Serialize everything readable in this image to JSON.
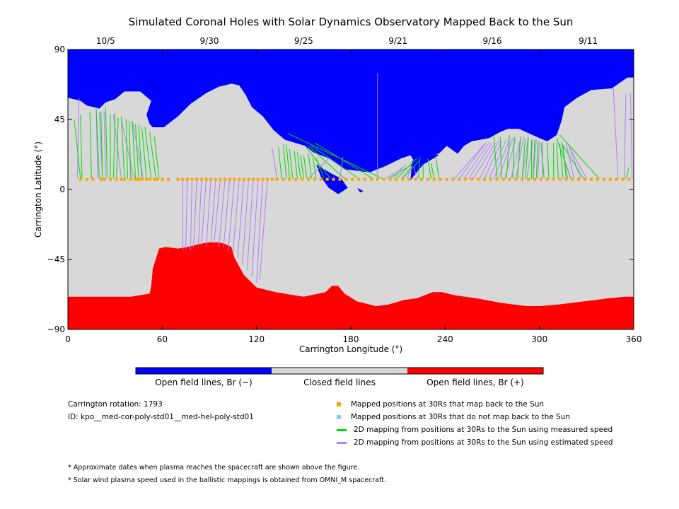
{
  "title": "Simulated Coronal Holes with Solar Dynamics Observatory Mapped Back to the Sun",
  "colors": {
    "open_negative": "#0000ff",
    "closed": "#d8d8d8",
    "open_positive": "#ff0000",
    "mapped_back": "#ffa500",
    "not_mapped_back": "#87cefa",
    "measured_speed": "#00dd00",
    "estimated_speed": "#b07cff"
  },
  "colorbar": {
    "labels": [
      "Open field lines, Br (−)",
      "Closed field lines",
      "Open field lines, Br (+)"
    ]
  },
  "info": {
    "rotation": "Carrington rotation: 1793",
    "id": "ID: kpo__med-cor-poly-std01__med-hel-poly-std01"
  },
  "legend": [
    {
      "kind": "square",
      "color_key": "mapped_back",
      "label": "Mapped positions at 30Rs that map back to the Sun"
    },
    {
      "kind": "square",
      "color_key": "not_mapped_back",
      "label": "Mapped positions at 30Rs that do not map back to the Sun"
    },
    {
      "kind": "line",
      "color_key": "measured_speed",
      "label": "2D mapping from positions at 30Rs to the Sun using measured speed"
    },
    {
      "kind": "line",
      "color_key": "estimated_speed",
      "label": "2D mapping from positions at 30Rs to the Sun using estimated speed"
    }
  ],
  "notes": [
    "* Approximate dates when plasma reaches the spacecraft are shown above the figure.",
    "* Solar wind plasma speed used in the ballistic mappings is obtained from OMNI_M spacecraft."
  ],
  "chart_data": {
    "type": "heatmap",
    "title": "Simulated Coronal Holes with Solar Dynamics Observatory Mapped Back to the Sun",
    "xlabel": "Carrington Longitude (°)",
    "ylabel": "Carrington Latitude (°)",
    "xlim": [
      0,
      360
    ],
    "ylim": [
      -90,
      90
    ],
    "x_ticks": [
      0,
      60,
      120,
      180,
      240,
      300,
      360
    ],
    "y_ticks": [
      {
        "value": -90,
        "label": "−90"
      },
      {
        "value": -45,
        "label": "−45"
      },
      {
        "value": 0,
        "label": "0"
      },
      {
        "value": 45,
        "label": "45"
      },
      {
        "value": 90,
        "label": "90"
      }
    ],
    "top_date_ticks": [
      {
        "lon": 24,
        "label": "10/5"
      },
      {
        "lon": 90,
        "label": "9/30"
      },
      {
        "lon": 150,
        "label": "9/25"
      },
      {
        "lon": 210,
        "label": "9/21"
      },
      {
        "lon": 270,
        "label": "9/16"
      },
      {
        "lon": 331,
        "label": "9/11"
      }
    ],
    "regions": [
      {
        "name": "Open field lines, Br (−)",
        "color_key": "open_negative",
        "polygons": [
          [
            [
              0,
              90
            ],
            [
              360,
              90
            ],
            [
              360,
              72
            ],
            [
              356,
              72
            ],
            [
              346,
              65
            ],
            [
              333,
              64
            ],
            [
              324,
              59
            ],
            [
              316,
              53
            ],
            [
              314,
              44
            ],
            [
              311,
              35
            ],
            [
              305,
              31
            ],
            [
              300,
              33
            ],
            [
              287,
              39
            ],
            [
              280,
              39
            ],
            [
              275,
              37
            ],
            [
              268,
              33
            ],
            [
              257,
              31
            ],
            [
              252,
              28
            ],
            [
              248,
              23
            ],
            [
              241,
              28
            ],
            [
              236,
              23
            ],
            [
              230,
              22
            ],
            [
              222,
              21
            ],
            [
              221,
              17
            ],
            [
              218,
              22
            ],
            [
              212,
              20
            ],
            [
              202,
              15
            ],
            [
              192,
              11
            ],
            [
              184,
              12
            ],
            [
              176,
              13
            ],
            [
              166,
              20
            ],
            [
              156,
              24
            ],
            [
              151,
              28
            ],
            [
              138,
              32
            ],
            [
              131,
              38
            ],
            [
              124,
              47
            ],
            [
              117,
              53
            ],
            [
              113,
              61
            ],
            [
              109,
              67
            ],
            [
              104,
              68
            ],
            [
              96,
              66
            ],
            [
              88,
              62
            ],
            [
              78,
              55
            ],
            [
              70,
              47
            ],
            [
              61,
              40
            ],
            [
              54,
              40
            ],
            [
              52,
              42
            ],
            [
              50,
              48
            ],
            [
              53,
              57
            ],
            [
              46,
              63
            ],
            [
              36,
              63
            ],
            [
              30,
              58
            ],
            [
              24,
              56
            ],
            [
              20,
              52
            ],
            [
              12,
              54
            ],
            [
              8,
              57
            ],
            [
              0,
              59
            ]
          ],
          [
            [
              158,
              16
            ],
            [
              163,
              13
            ],
            [
              168,
              10
            ],
            [
              174,
              7
            ],
            [
              178,
              1
            ],
            [
              172,
              -3
            ],
            [
              166,
              1
            ],
            [
              161,
              8
            ]
          ],
          [
            [
              218,
              6
            ],
            [
              219,
              18
            ],
            [
              222,
              21
            ],
            [
              232,
              24
            ],
            [
              236,
              22
            ],
            [
              226,
              16
            ],
            [
              222,
              11
            ]
          ],
          [
            [
              184,
              1
            ],
            [
              188,
              -1
            ],
            [
              186,
              -2
            ]
          ]
        ]
      },
      {
        "name": "Open field lines, Br (+)",
        "color_key": "open_positive",
        "polygons": [
          [
            [
              0,
              -69
            ],
            [
              40,
              -69
            ],
            [
              52,
              -67
            ],
            [
              53,
              -62
            ],
            [
              54,
              -51
            ],
            [
              58,
              -38
            ],
            [
              62,
              -37
            ],
            [
              70,
              -38
            ],
            [
              76,
              -37
            ],
            [
              84,
              -35
            ],
            [
              90,
              -34
            ],
            [
              96,
              -34
            ],
            [
              100,
              -35
            ],
            [
              104,
              -37
            ],
            [
              106,
              -44
            ],
            [
              112,
              -55
            ],
            [
              120,
              -63
            ],
            [
              132,
              -66
            ],
            [
              150,
              -69
            ],
            [
              164,
              -66
            ],
            [
              168,
              -62
            ],
            [
              172,
              -62
            ],
            [
              176,
              -67
            ],
            [
              184,
              -72
            ],
            [
              196,
              -75
            ],
            [
              204,
              -74
            ],
            [
              214,
              -71
            ],
            [
              222,
              -70
            ],
            [
              232,
              -66
            ],
            [
              238,
              -66
            ],
            [
              246,
              -68
            ],
            [
              260,
              -70
            ],
            [
              276,
              -73
            ],
            [
              292,
              -75
            ],
            [
              300,
              -75
            ],
            [
              312,
              -74
            ],
            [
              328,
              -72
            ],
            [
              344,
              -70
            ],
            [
              354,
              -69
            ],
            [
              360,
              -69
            ],
            [
              360,
              -90
            ],
            [
              0,
              -90
            ]
          ]
        ]
      }
    ],
    "mapped_positions_30Rs": {
      "latitude": 6.5,
      "lon_mapped_back": [
        8,
        12,
        16,
        21,
        23,
        27,
        31,
        34,
        36,
        40,
        43,
        45,
        47,
        50,
        52,
        55,
        57,
        60,
        64,
        70,
        73,
        76,
        79,
        82,
        85,
        88,
        91,
        94,
        97,
        100,
        103,
        106,
        109,
        112,
        115,
        118,
        121,
        124,
        127,
        130,
        133,
        137,
        141,
        145,
        149,
        153,
        157,
        161,
        165,
        169,
        173,
        177,
        181,
        185,
        189,
        193,
        197,
        201,
        205,
        209,
        213,
        217,
        221,
        225,
        229,
        233,
        237,
        241,
        245,
        249,
        253,
        257,
        261,
        265,
        269,
        273,
        277,
        281,
        285,
        289,
        293,
        297,
        301,
        305,
        309,
        313,
        317,
        321,
        325,
        329,
        333,
        337,
        341,
        345,
        349,
        353,
        357
      ],
      "lon_not_mapped_back": []
    },
    "mappings_measured_speed": [
      [
        8,
        7,
        4,
        45
      ],
      [
        9,
        7,
        8,
        48
      ],
      [
        15,
        7,
        14,
        50
      ],
      [
        20,
        7,
        18,
        52
      ],
      [
        22,
        7,
        21,
        50
      ],
      [
        25,
        7,
        24,
        53
      ],
      [
        27,
        7,
        27,
        48
      ],
      [
        29,
        7,
        30,
        49
      ],
      [
        31,
        7,
        32,
        46
      ],
      [
        36,
        7,
        34,
        47
      ],
      [
        38,
        7,
        37,
        45
      ],
      [
        40,
        7,
        39,
        44
      ],
      [
        43,
        7,
        41,
        44
      ],
      [
        45,
        7,
        43,
        42
      ],
      [
        47,
        7,
        45,
        42
      ],
      [
        50,
        7,
        47,
        40
      ],
      [
        53,
        7,
        49,
        40
      ],
      [
        56,
        7,
        52,
        37
      ],
      [
        58,
        7,
        55,
        34
      ],
      [
        136,
        7,
        134,
        27
      ],
      [
        139,
        7,
        137,
        29
      ],
      [
        141,
        7,
        139,
        29
      ],
      [
        143,
        7,
        141,
        26
      ],
      [
        146,
        7,
        144,
        25
      ],
      [
        148,
        7,
        146,
        24
      ],
      [
        150,
        7,
        148,
        22
      ],
      [
        152,
        7,
        150,
        22
      ],
      [
        155,
        7,
        153,
        23
      ],
      [
        158,
        7,
        156,
        20
      ],
      [
        163,
        7,
        158,
        20
      ],
      [
        167,
        7,
        151,
        28
      ],
      [
        176,
        7,
        153,
        28
      ],
      [
        185,
        7,
        155,
        28
      ],
      [
        194,
        7,
        157,
        30
      ],
      [
        200,
        7,
        140,
        36
      ],
      [
        204,
        7,
        219,
        16
      ],
      [
        209,
        7,
        222,
        20
      ],
      [
        213,
        7,
        223,
        18
      ],
      [
        223,
        7,
        224,
        21
      ],
      [
        226,
        7,
        226,
        16
      ],
      [
        231,
        7,
        229,
        20
      ],
      [
        233,
        7,
        231,
        17
      ],
      [
        236,
        7,
        234,
        22
      ],
      [
        273,
        7,
        271,
        34
      ],
      [
        276,
        7,
        275,
        34
      ],
      [
        279,
        7,
        281,
        35
      ],
      [
        283,
        7,
        284,
        34
      ],
      [
        286,
        7,
        288,
        34
      ],
      [
        289,
        7,
        291,
        33
      ],
      [
        291,
        7,
        293,
        33
      ],
      [
        295,
        7,
        295,
        32
      ],
      [
        296,
        7,
        297,
        32
      ],
      [
        298,
        7,
        299,
        31
      ],
      [
        303,
        7,
        301,
        30
      ],
      [
        306,
        7,
        305,
        30
      ],
      [
        309,
        7,
        309,
        30
      ],
      [
        312,
        7,
        311,
        30
      ],
      [
        315,
        7,
        313,
        29
      ],
      [
        317,
        7,
        315,
        28
      ],
      [
        320,
        7,
        311,
        33
      ],
      [
        328,
        7,
        314,
        30
      ],
      [
        338,
        7,
        313,
        35
      ],
      [
        355,
        7,
        357,
        14
      ]
    ],
    "mappings_estimated_speed": [
      [
        6,
        7,
        7,
        59
      ],
      [
        19,
        7,
        18,
        52
      ],
      [
        22,
        7,
        20,
        50
      ],
      [
        24,
        7,
        23,
        50
      ],
      [
        34,
        7,
        29,
        48
      ],
      [
        42,
        7,
        34,
        45
      ],
      [
        48,
        7,
        41,
        44
      ],
      [
        70,
        7,
        71,
        7
      ],
      [
        73,
        7,
        73,
        -39
      ],
      [
        76,
        7,
        75,
        -38
      ],
      [
        79,
        7,
        78,
        -39
      ],
      [
        82,
        7,
        80,
        -37
      ],
      [
        85,
        7,
        83,
        -36
      ],
      [
        88,
        7,
        85,
        -36
      ],
      [
        91,
        7,
        88,
        -37
      ],
      [
        94,
        7,
        91,
        -34
      ],
      [
        97,
        7,
        93,
        -35
      ],
      [
        100,
        7,
        96,
        -37
      ],
      [
        103,
        7,
        99,
        -37
      ],
      [
        106,
        7,
        102,
        -40
      ],
      [
        109,
        7,
        105,
        -40
      ],
      [
        112,
        7,
        108,
        -44
      ],
      [
        115,
        7,
        111,
        -48
      ],
      [
        118,
        7,
        114,
        -52
      ],
      [
        121,
        7,
        117,
        -56
      ],
      [
        124,
        7,
        120,
        -60
      ],
      [
        127,
        7,
        122,
        -58
      ],
      [
        133,
        7,
        130,
        26
      ],
      [
        153,
        7,
        166,
        20
      ],
      [
        173,
        7,
        175,
        21
      ],
      [
        197,
        7,
        197,
        75
      ],
      [
        202,
        7,
        213,
        14
      ],
      [
        207,
        7,
        215,
        16
      ],
      [
        212,
        7,
        218,
        14
      ],
      [
        216,
        7,
        219,
        17
      ],
      [
        222,
        7,
        220,
        15
      ],
      [
        246,
        7,
        265,
        29
      ],
      [
        249,
        7,
        266,
        30
      ],
      [
        252,
        7,
        268,
        30
      ],
      [
        255,
        7,
        270,
        30
      ],
      [
        258,
        7,
        272,
        30
      ],
      [
        262,
        7,
        274,
        31
      ],
      [
        265,
        7,
        276,
        31
      ],
      [
        268,
        7,
        279,
        32
      ],
      [
        271,
        7,
        281,
        32
      ],
      [
        274,
        7,
        283,
        33
      ],
      [
        278,
        7,
        285,
        33
      ],
      [
        282,
        7,
        288,
        33
      ],
      [
        285,
        7,
        290,
        34
      ],
      [
        289,
        7,
        293,
        34
      ],
      [
        292,
        7,
        296,
        32
      ],
      [
        296,
        7,
        298,
        32
      ],
      [
        299,
        7,
        300,
        31
      ],
      [
        302,
        7,
        302,
        31
      ],
      [
        318,
        7,
        314,
        31
      ],
      [
        322,
        7,
        317,
        30
      ],
      [
        326,
        7,
        319,
        28
      ],
      [
        330,
        7,
        319,
        27
      ],
      [
        350,
        7,
        347,
        65
      ],
      [
        354,
        7,
        355,
        61
      ],
      [
        359,
        7,
        358,
        62
      ]
    ]
  }
}
